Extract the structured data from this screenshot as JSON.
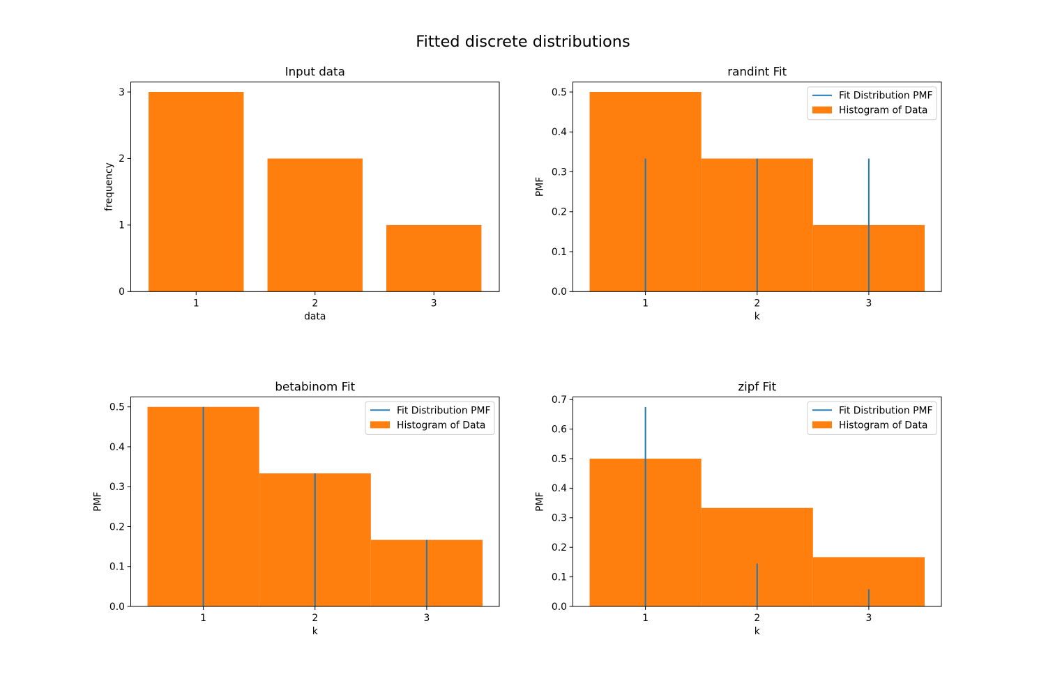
{
  "figure": {
    "suptitle": "Fitted discrete distributions"
  },
  "colors": {
    "histogram": "#ff7f0e",
    "pmf": "#1f77b4",
    "axes": "#000000",
    "background": "#ffffff",
    "legend_border": "#cccccc"
  },
  "chart_data": [
    {
      "type": "bar",
      "title": "Input data",
      "xlabel": "data",
      "ylabel": "frequency",
      "categories": [
        "1",
        "2",
        "3"
      ],
      "values": [
        3,
        2,
        1
      ],
      "ylim": [
        0,
        3.15
      ],
      "yticks": [
        "0",
        "1",
        "2",
        "3"
      ],
      "grid": false,
      "legend": null
    },
    {
      "type": "bar",
      "title": "randint Fit",
      "xlabel": "k",
      "ylabel": "PMF",
      "x": [
        1,
        2,
        3
      ],
      "xticks": [
        "1",
        "2",
        "3"
      ],
      "series": [
        {
          "name": "Histogram of Data",
          "kind": "histogram",
          "values": [
            0.5,
            0.3333,
            0.1667
          ]
        },
        {
          "name": "Fit Distribution PMF",
          "kind": "stem",
          "values": [
            0.3333,
            0.3333,
            0.3333
          ]
        }
      ],
      "ylim": [
        0,
        0.525
      ],
      "yticks": [
        "0.0",
        "0.1",
        "0.2",
        "0.3",
        "0.4",
        "0.5"
      ],
      "grid": false,
      "legend": "top-right"
    },
    {
      "type": "bar",
      "title": "betabinom Fit",
      "xlabel": "k",
      "ylabel": "PMF",
      "x": [
        1,
        2,
        3
      ],
      "xticks": [
        "1",
        "2",
        "3"
      ],
      "series": [
        {
          "name": "Histogram of Data",
          "kind": "histogram",
          "values": [
            0.5,
            0.3333,
            0.1667
          ]
        },
        {
          "name": "Fit Distribution PMF",
          "kind": "stem",
          "values": [
            0.5,
            0.3333,
            0.1667
          ]
        }
      ],
      "ylim": [
        0,
        0.525
      ],
      "yticks": [
        "0.0",
        "0.1",
        "0.2",
        "0.3",
        "0.4",
        "0.5"
      ],
      "grid": false,
      "legend": "top-right"
    },
    {
      "type": "bar",
      "title": "zipf Fit",
      "xlabel": "k",
      "ylabel": "PMF",
      "x": [
        1,
        2,
        3
      ],
      "xticks": [
        "1",
        "2",
        "3"
      ],
      "series": [
        {
          "name": "Histogram of Data",
          "kind": "histogram",
          "values": [
            0.5,
            0.3333,
            0.1667
          ]
        },
        {
          "name": "Fit Distribution PMF",
          "kind": "stem",
          "values": [
            0.675,
            0.145,
            0.058
          ]
        }
      ],
      "ylim": [
        0,
        0.709
      ],
      "yticks": [
        "0.0",
        "0.1",
        "0.2",
        "0.3",
        "0.4",
        "0.5",
        "0.6",
        "0.7"
      ],
      "grid": false,
      "legend": "top-right"
    }
  ]
}
